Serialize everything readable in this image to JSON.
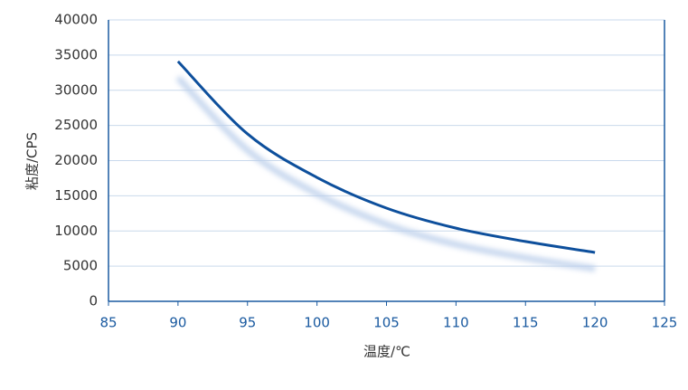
{
  "chart_data": {
    "type": "line",
    "x_label": "温度/℃",
    "y_label": "粘度/CPS",
    "x": [
      90,
      95,
      100,
      105,
      110,
      115,
      120
    ],
    "series": [
      {
        "name": "粘度",
        "color": "#0d4f9c",
        "values": [
          34100,
          23800,
          17600,
          13250,
          10400,
          8500,
          6950
        ]
      }
    ],
    "xlim": [
      85,
      125
    ],
    "xticks": [
      85,
      90,
      95,
      100,
      105,
      110,
      115,
      120,
      125
    ],
    "ylim": [
      0,
      40000
    ],
    "yticks": [
      0,
      5000,
      10000,
      15000,
      20000,
      25000,
      30000,
      35000,
      40000
    ],
    "grid": true
  }
}
